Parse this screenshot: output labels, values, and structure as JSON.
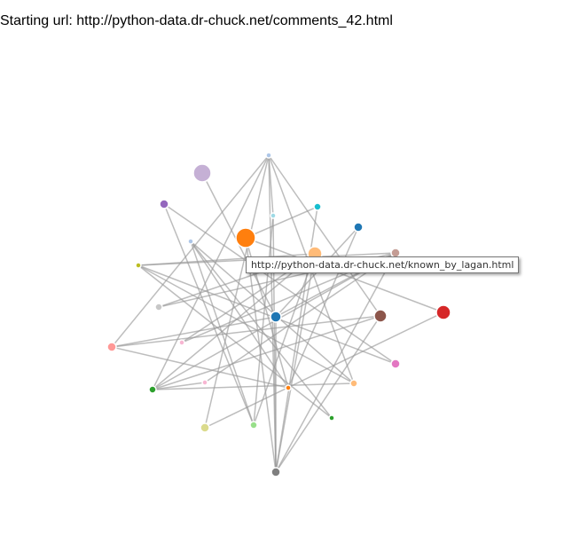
{
  "header": {
    "label": "Starting url:",
    "url": "http://python-data.dr-chuck.net/comments_42.html"
  },
  "tooltip": {
    "text": "http://python-data.dr-chuck.net/known_by_lagan.html"
  },
  "colors": {
    "link": "#999999",
    "palette": [
      "#1f77b4",
      "#aec7e8",
      "#ff7f0e",
      "#ffbb78",
      "#2ca02c",
      "#98df8a",
      "#d62728",
      "#ff9896",
      "#9467bd",
      "#c5b0d5",
      "#8c564b",
      "#c49c94",
      "#e377c2",
      "#f7b6d2",
      "#7f7f7f",
      "#c7c7c7",
      "#bcbd22",
      "#dbdb8d",
      "#17becf",
      "#9edae5"
    ]
  },
  "graph": {
    "node_count": 24,
    "link_count": 48
  }
}
